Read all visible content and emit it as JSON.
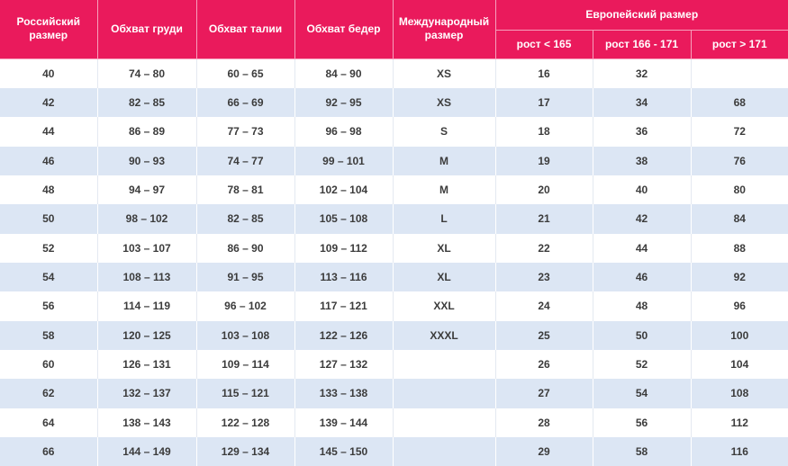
{
  "table": {
    "headers": [
      "Российский размер",
      "Обхват груди",
      "Обхват талии",
      "Обхват бедер",
      "Международный размер"
    ],
    "group_header": "Европейский размер",
    "subheaders": [
      "рост < 165",
      "рост 166 - 171",
      "рост > 171"
    ],
    "rows": [
      [
        40,
        "74 – 80",
        "60 – 65",
        "84 – 90",
        "XS",
        16,
        32,
        null
      ],
      [
        42,
        "82 – 85",
        "66 – 69",
        "92 – 95",
        "XS",
        17,
        34,
        68
      ],
      [
        44,
        "86 – 89",
        "77 – 73",
        "96 – 98",
        "S",
        18,
        36,
        72
      ],
      [
        46,
        "90 – 93",
        "74 – 77",
        "99 – 101",
        "M",
        19,
        38,
        76
      ],
      [
        48,
        "94 – 97",
        "78 – 81",
        "102 – 104",
        "M",
        20,
        40,
        80
      ],
      [
        50,
        "98 – 102",
        "82 – 85",
        "105 – 108",
        "L",
        21,
        42,
        84
      ],
      [
        52,
        "103 – 107",
        "86 – 90",
        "109 – 112",
        "XL",
        22,
        44,
        88
      ],
      [
        54,
        "108 – 113",
        "91 – 95",
        "113 – 116",
        "XL",
        23,
        46,
        92
      ],
      [
        56,
        "114 – 119",
        "96 – 102",
        "117 – 121",
        "XXL",
        24,
        48,
        96
      ],
      [
        58,
        "120 – 125",
        "103 – 108",
        "122 – 126",
        "XXXL",
        25,
        50,
        100
      ],
      [
        60,
        "126 – 131",
        "109 – 114",
        "127 – 132",
        null,
        26,
        52,
        104
      ],
      [
        62,
        "132 – 137",
        "115 – 121",
        "133 – 138",
        null,
        27,
        54,
        108
      ],
      [
        64,
        "138 – 143",
        "122 – 128",
        "139 – 144",
        null,
        28,
        56,
        112
      ],
      [
        66,
        "144 – 149",
        "129 – 134",
        "145 – 150",
        null,
        29,
        58,
        116
      ]
    ]
  }
}
